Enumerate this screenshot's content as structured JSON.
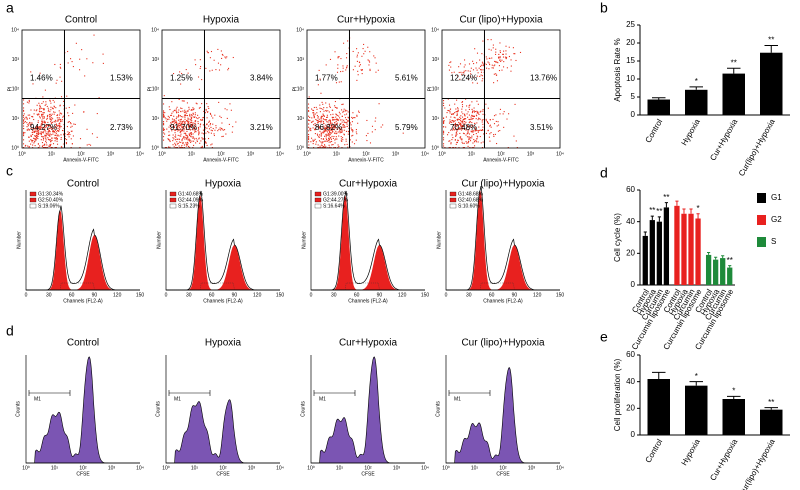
{
  "panel_labels": [
    "a",
    "b",
    "c",
    "d",
    "d",
    "e"
  ],
  "flow_plots": [
    {
      "title": "Control",
      "quadrants": [
        "1.46%",
        "1.53%",
        "94.27%",
        "2.73%"
      ]
    },
    {
      "title": "Hypoxia",
      "quadrants": [
        "1.25%",
        "3.84%",
        "91.70%",
        "3.21%"
      ]
    },
    {
      "title": "Cur+Hypoxia",
      "quadrants": [
        "1.77%",
        "5.61%",
        "86.82%",
        "5.79%"
      ]
    },
    {
      "title": "Cur (lipo)+Hypoxia",
      "quadrants": [
        "12.24%",
        "13.76%",
        "70.48%",
        "3.51%"
      ]
    }
  ],
  "flow_x_label": "Annexin-V-FITC",
  "flow_y_label": "PI",
  "log_ticks": [
    "10⁰",
    "10¹",
    "10²",
    "10³",
    "10⁴"
  ],
  "cycle_plots": [
    {
      "title": "Control",
      "legend": [
        "G1:30.34%",
        "G2:50.40%",
        "S:19.06%"
      ]
    },
    {
      "title": "Hypoxia",
      "legend": [
        "G1:40.68%",
        "G2:44.09%",
        "S:15.23%"
      ]
    },
    {
      "title": "Cur+Hypoxia",
      "legend": [
        "G1:39.00%",
        "G2:44.27%",
        "S:16.64%"
      ]
    },
    {
      "title": "Cur (lipo)+Hypoxia",
      "legend": [
        "G1:48.68%",
        "G2:40.68%",
        "S:10.60%"
      ]
    }
  ],
  "cycle_x_label": "Channels (FL2-A)",
  "cycle_y_label": "Number",
  "cycle_x_ticks": [
    "0",
    "30",
    "60",
    "90",
    "120",
    "150"
  ],
  "cfse_plots": [
    {
      "title": "Control"
    },
    {
      "title": "Hypoxia"
    },
    {
      "title": "Cur+Hypoxia"
    },
    {
      "title": "Cur (lipo)+Hypoxia"
    }
  ],
  "cfse_x_label": "CFSE",
  "cfse_y_label": "Counts",
  "cfse_gate": "M1",
  "chart_data": [
    {
      "type": "bar",
      "ylabel": "Apoptosis Rate %",
      "categories": [
        "Control",
        "Hypoxia",
        "Cur+Hypoxia",
        "Cur(lipo)+Hypoxia"
      ],
      "values": [
        4.3,
        7.0,
        11.5,
        17.3
      ],
      "errors": [
        0.5,
        0.8,
        1.5,
        2.0
      ],
      "value_annotations": [
        null,
        "*",
        "**",
        "**"
      ],
      "color": "#000000",
      "ylim": [
        0,
        25
      ],
      "yticks": [
        0,
        5,
        10,
        15,
        20,
        25
      ]
    },
    {
      "type": "grouped_bar",
      "ylabel": "Cell cycle (%)",
      "categories": [
        "Control",
        "Hypoxia",
        "Curcumin",
        "Curcumin liposome"
      ],
      "series": [
        {
          "name": "G1",
          "color": "#000000",
          "values": [
            31,
            41,
            40,
            49
          ],
          "errors": [
            2.5,
            2.5,
            3,
            3
          ]
        },
        {
          "name": "G2",
          "color": "#e8211f",
          "values": [
            50,
            45,
            45,
            42
          ],
          "errors": [
            3,
            3,
            3,
            3
          ]
        },
        {
          "name": "S",
          "color": "#1e8a3a",
          "values": [
            19,
            16,
            17,
            11
          ],
          "errors": [
            1.5,
            1.5,
            1.5,
            1.2
          ]
        }
      ],
      "value_annotations": [
        [
          null,
          "**",
          "**",
          "**"
        ],
        [
          null,
          null,
          null,
          "*"
        ],
        [
          null,
          null,
          null,
          "**"
        ]
      ],
      "ylim": [
        0,
        60
      ],
      "yticks": [
        0,
        20,
        40,
        60
      ],
      "legend": "right"
    },
    {
      "type": "bar",
      "ylabel": "Cell proliferation (%)",
      "categories": [
        "Control",
        "Hypoxia",
        "Cur+Hypoxia",
        "Cur(lipo)+Hypoxia"
      ],
      "values": [
        42,
        37,
        27,
        19
      ],
      "errors": [
        5,
        3,
        2,
        1.5
      ],
      "value_annotations": [
        null,
        "*",
        "*",
        "**"
      ],
      "color": "#000000",
      "ylim": [
        0,
        60
      ],
      "yticks": [
        0,
        20,
        40,
        60
      ]
    }
  ]
}
